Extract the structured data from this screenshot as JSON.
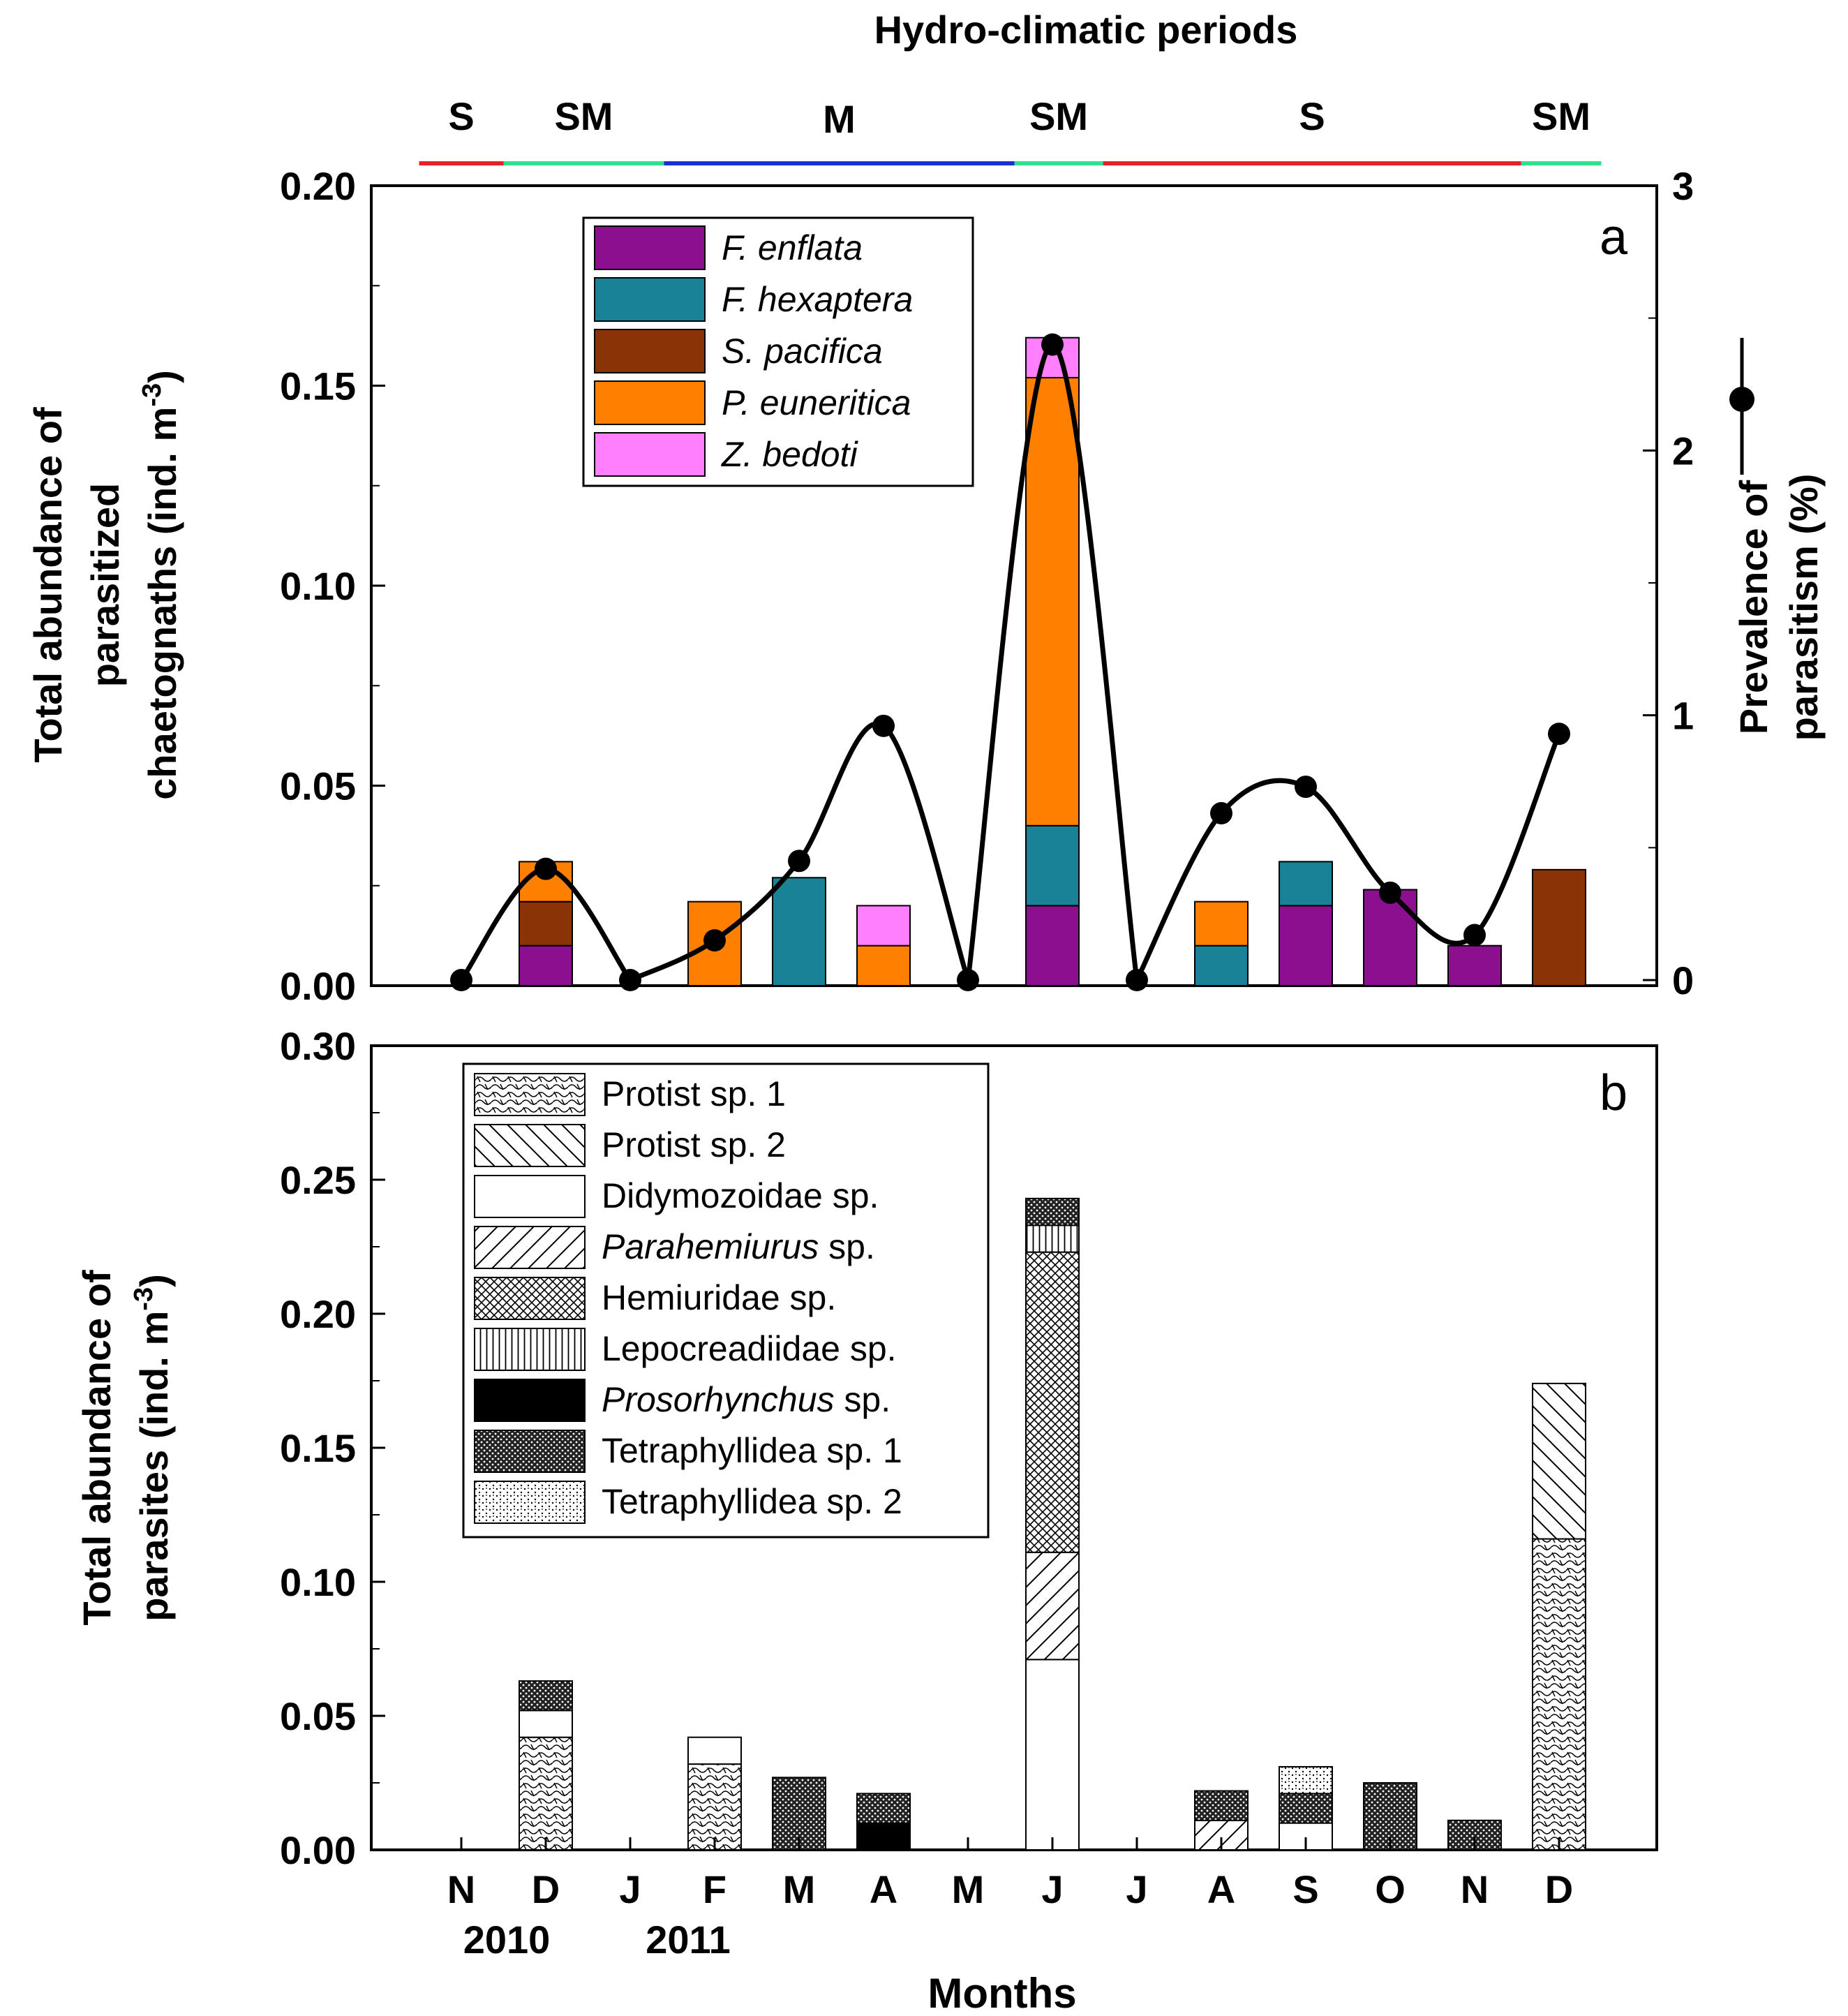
{
  "figure": {
    "top_title": "Hydro-climatic periods",
    "x_axis_title": "Months",
    "year_labels": [
      "2010",
      "2011"
    ],
    "months": [
      "N",
      "D",
      "J",
      "F",
      "M",
      "A",
      "M",
      "J",
      "J",
      "A",
      "S",
      "O",
      "N",
      "D"
    ]
  },
  "periods": [
    {
      "label": "S",
      "color": "#e8202a",
      "start": -0.5,
      "end": 0.5
    },
    {
      "label": "SM",
      "color": "#2fe08f",
      "start": 0.5,
      "end": 2.4
    },
    {
      "label": "M",
      "color": "#1a2fd4",
      "start": 2.4,
      "end": 6.55
    },
    {
      "label": "SM",
      "color": "#2fe08f",
      "start": 6.55,
      "end": 7.6
    },
    {
      "label": "S",
      "color": "#e8202a",
      "start": 7.6,
      "end": 12.55
    },
    {
      "label": "SM",
      "color": "#2fe08f",
      "start": 12.55,
      "end": 13.5
    }
  ],
  "chart_data": [
    {
      "type": "bar",
      "stacked": true,
      "panel_label": "a",
      "ylabel_lines": [
        "Total abundance of",
        "parasitized",
        "chaetognaths (ind. m"
      ],
      "ylabel_sup": "-3",
      "ylabel_close": ")",
      "ylim": [
        0,
        0.2
      ],
      "yticks": [
        "0.00",
        "0.05",
        "0.10",
        "0.15",
        "0.20"
      ],
      "y2label_lines": [
        "Prevalence of",
        "parasitism (%)"
      ],
      "y2lim": [
        0,
        3
      ],
      "y2ticks": [
        "0",
        "1",
        "2",
        "3"
      ],
      "categories": [
        "N",
        "D",
        "J",
        "F",
        "M",
        "A",
        "M",
        "J",
        "J",
        "A",
        "S",
        "O",
        "N",
        "D"
      ],
      "series": [
        {
          "name": "F. enflata",
          "color": "#8b0f8f",
          "values": [
            0,
            0.01,
            0,
            0,
            0,
            0,
            0,
            0.02,
            0,
            0,
            0.02,
            0.024,
            0.01,
            0
          ]
        },
        {
          "name": "F. hexaptera",
          "color": "#1a8296",
          "values": [
            0,
            0,
            0,
            0,
            0.027,
            0,
            0,
            0.02,
            0,
            0.01,
            0.011,
            0,
            0,
            0
          ]
        },
        {
          "name": "S. pacifica",
          "color": "#8a3306",
          "values": [
            0,
            0.011,
            0,
            0,
            0,
            0,
            0,
            0,
            0,
            0,
            0,
            0,
            0,
            0.029
          ]
        },
        {
          "name": "P. euneritica",
          "color": "#ff8000",
          "values": [
            0,
            0.01,
            0,
            0.021,
            0,
            0.01,
            0,
            0.112,
            0,
            0.011,
            0,
            0,
            0,
            0
          ]
        },
        {
          "name": "Z. bedoti",
          "color": "#ff7fff",
          "values": [
            0,
            0,
            0,
            0,
            0,
            0.01,
            0,
            0.01,
            0,
            0,
            0,
            0,
            0,
            0
          ]
        }
      ],
      "line_series": {
        "name": "Prevalence of parasitism (%)",
        "axis": "right",
        "values": [
          0,
          0.42,
          0,
          0.15,
          0.45,
          0.96,
          0,
          2.4,
          0,
          0.63,
          0.73,
          0.33,
          0.17,
          0.93
        ]
      }
    },
    {
      "type": "bar",
      "stacked": true,
      "panel_label": "b",
      "ylabel_lines": [
        "Total abundance of",
        "parasites (ind. m"
      ],
      "ylabel_sup": "-3",
      "ylabel_close": ")",
      "ylim": [
        0,
        0.3
      ],
      "yticks": [
        "0.00",
        "0.05",
        "0.10",
        "0.15",
        "0.20",
        "0.25",
        "0.30"
      ],
      "categories": [
        "N",
        "D",
        "J",
        "F",
        "M",
        "A",
        "M",
        "J",
        "J",
        "A",
        "S",
        "O",
        "N",
        "D"
      ],
      "series": [
        {
          "name": "Protist sp. 1",
          "pattern": "wave",
          "values": [
            0,
            0.042,
            0,
            0.032,
            0,
            0,
            0,
            0,
            0,
            0,
            0,
            0,
            0,
            0.116
          ]
        },
        {
          "name": "Protist sp. 2",
          "pattern": "diag-back",
          "values": [
            0,
            0,
            0,
            0,
            0,
            0,
            0,
            0,
            0,
            0,
            0,
            0,
            0,
            0.058
          ]
        },
        {
          "name": "Didymozoidae sp.",
          "pattern": "blank",
          "values": [
            0,
            0.01,
            0,
            0.01,
            0,
            0,
            0,
            0.071,
            0,
            0,
            0.01,
            0,
            0,
            0
          ]
        },
        {
          "name": "Parahemiurus sp.",
          "pattern": "diag-fwd",
          "values": [
            0,
            0,
            0,
            0,
            0,
            0,
            0,
            0.04,
            0,
            0.011,
            0,
            0,
            0,
            0
          ]
        },
        {
          "name": "Hemiuridae sp.",
          "pattern": "cross",
          "values": [
            0,
            0,
            0,
            0,
            0,
            0,
            0,
            0.112,
            0,
            0,
            0,
            0,
            0,
            0
          ]
        },
        {
          "name": "Lepocreadiidae sp.",
          "pattern": "vertical",
          "values": [
            0,
            0,
            0,
            0,
            0,
            0,
            0,
            0.01,
            0,
            0,
            0,
            0,
            0,
            0
          ]
        },
        {
          "name": "Prosorhynchus sp.",
          "pattern": "solid",
          "values": [
            0,
            0,
            0,
            0,
            0,
            0.01,
            0,
            0,
            0,
            0,
            0,
            0,
            0,
            0
          ]
        },
        {
          "name": "Tetraphyllidea sp. 1",
          "pattern": "dense-dots",
          "values": [
            0,
            0.011,
            0,
            0,
            0.027,
            0.011,
            0,
            0.01,
            0,
            0.011,
            0.011,
            0.025,
            0.011,
            0
          ]
        },
        {
          "name": "Tetraphyllidea sp. 2",
          "pattern": "light-dots",
          "values": [
            0,
            0,
            0,
            0,
            0,
            0,
            0,
            0,
            0,
            0,
            0.01,
            0,
            0,
            0
          ]
        }
      ]
    }
  ]
}
